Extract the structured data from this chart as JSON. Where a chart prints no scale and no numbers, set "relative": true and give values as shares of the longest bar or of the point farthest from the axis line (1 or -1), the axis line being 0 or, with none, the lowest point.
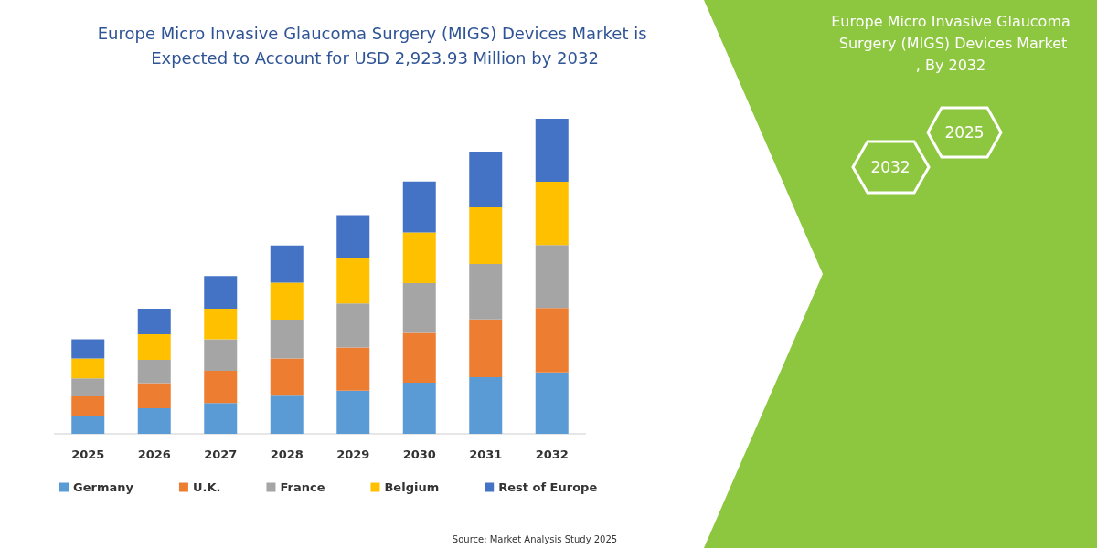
{
  "chart_data": {
    "type": "bar",
    "title": "Europe Micro Invasive Glaucoma Surgery (MIGS) Devices Market is Expected to Account for USD 2,923.93 Million by 2032",
    "subtitle": "Europe Micro Invasive Glaucoma Surgery (MIGS) Devices Market, By 2032",
    "annotations": [
      "2032",
      "2025",
      "Source: Market Analysis Study 2025"
    ],
    "categories": [
      "2025",
      "2026",
      "2027",
      "2028",
      "2029",
      "2030",
      "2031",
      "2032"
    ],
    "stacked": true,
    "relative": true,
    "legend": "bottom",
    "series": [
      {
        "name": "Germany",
        "color": "#5b9bd5",
        "values": [
          0.056,
          0.081,
          0.098,
          0.121,
          0.137,
          0.162,
          0.18,
          0.195
        ]
      },
      {
        "name": "U.K.",
        "color": "#ed7d31",
        "values": [
          0.063,
          0.08,
          0.102,
          0.118,
          0.137,
          0.158,
          0.183,
          0.204
        ]
      },
      {
        "name": "France",
        "color": "#a5a5a5",
        "values": [
          0.057,
          0.074,
          0.1,
          0.123,
          0.14,
          0.158,
          0.176,
          0.2
        ]
      },
      {
        "name": "Belgium",
        "color": "#ffc000",
        "values": [
          0.063,
          0.081,
          0.097,
          0.118,
          0.143,
          0.161,
          0.18,
          0.201
        ]
      },
      {
        "name": "Rest of Europe",
        "color": "#4472c4",
        "values": [
          0.061,
          0.081,
          0.104,
          0.118,
          0.137,
          0.162,
          0.177,
          0.2
        ]
      }
    ]
  }
}
